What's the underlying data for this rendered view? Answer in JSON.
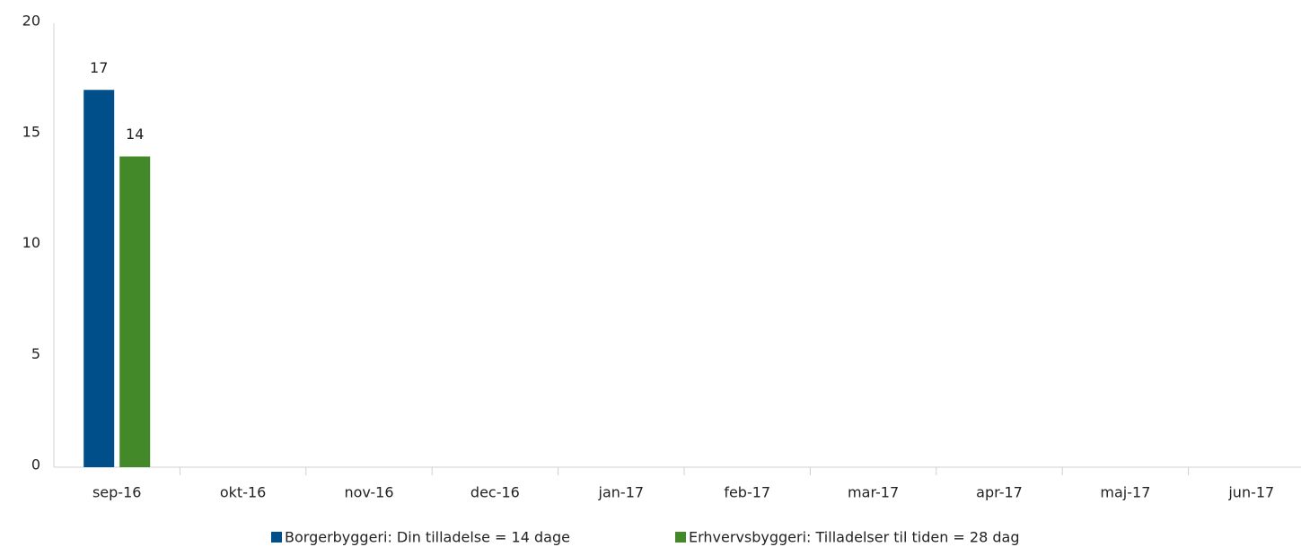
{
  "chart_data": {
    "type": "bar",
    "categories": [
      "sep-16",
      "okt-16",
      "nov-16",
      "dec-16",
      "jan-17",
      "feb-17",
      "mar-17",
      "apr-17",
      "maj-17",
      "jun-17"
    ],
    "series": [
      {
        "name": "Borgerbyggeri: Din tilladelse = 14 dage",
        "color": "#004f8b",
        "values": [
          17,
          null,
          null,
          null,
          null,
          null,
          null,
          null,
          null,
          null
        ]
      },
      {
        "name": "Erhvervsbyggeri: Tilladelser til tiden = 28 dag",
        "color": "#43892a",
        "values": [
          14,
          null,
          null,
          null,
          null,
          null,
          null,
          null,
          null,
          null
        ]
      }
    ],
    "ylim": [
      0,
      20
    ],
    "yticks": [
      0,
      5,
      10,
      15,
      20
    ],
    "grid": false,
    "legend": "bottom"
  }
}
